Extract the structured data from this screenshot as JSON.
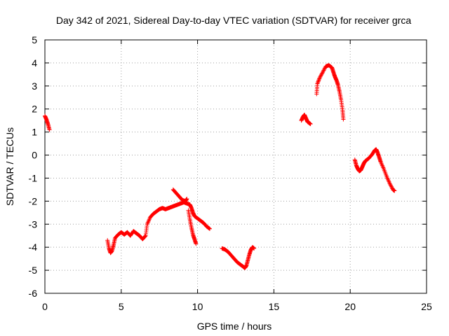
{
  "chart_data": {
    "type": "scatter",
    "title": "Day 342 of 2021, Sidereal Day-to-day VTEC variation (SDTVAR) for receiver grca",
    "xlabel": "GPS time / hours",
    "ylabel": "SDTVAR / TECUs",
    "xlim": [
      0,
      25
    ],
    "ylim": [
      -6,
      5
    ],
    "xticks": [
      0,
      5,
      10,
      15,
      20,
      25
    ],
    "yticks": [
      -6,
      -5,
      -4,
      -3,
      -2,
      -1,
      0,
      1,
      2,
      3,
      4,
      5
    ],
    "grid": true,
    "marker": "+",
    "series_color": "#ff0000",
    "series": [
      {
        "name": "SDTVAR",
        "segments": [
          [
            [
              0.0,
              1.7
            ],
            [
              0.1,
              1.55
            ],
            [
              0.2,
              1.35
            ],
            [
              0.3,
              1.1
            ]
          ],
          [
            [
              4.1,
              -3.7
            ],
            [
              4.2,
              -4.05
            ],
            [
              4.3,
              -4.25
            ],
            [
              4.4,
              -4.15
            ],
            [
              4.5,
              -3.9
            ],
            [
              4.6,
              -3.6
            ],
            [
              4.8,
              -3.45
            ],
            [
              5.0,
              -3.35
            ],
            [
              5.2,
              -3.45
            ],
            [
              5.4,
              -3.35
            ],
            [
              5.6,
              -3.5
            ],
            [
              5.8,
              -3.3
            ],
            [
              6.0,
              -3.4
            ],
            [
              6.2,
              -3.5
            ],
            [
              6.4,
              -3.65
            ],
            [
              6.6,
              -3.5
            ],
            [
              6.7,
              -3.0
            ],
            [
              6.9,
              -2.7
            ],
            [
              7.1,
              -2.55
            ],
            [
              7.3,
              -2.45
            ],
            [
              7.5,
              -2.35
            ],
            [
              7.7,
              -2.3
            ],
            [
              7.9,
              -2.35
            ],
            [
              8.1,
              -2.3
            ],
            [
              8.3,
              -2.25
            ],
            [
              8.5,
              -2.2
            ],
            [
              8.7,
              -2.15
            ],
            [
              8.9,
              -2.1
            ],
            [
              9.1,
              -2.05
            ],
            [
              9.3,
              -2.1
            ],
            [
              9.5,
              -2.15
            ],
            [
              9.6,
              -2.3
            ],
            [
              9.7,
              -2.5
            ],
            [
              9.8,
              -2.65
            ],
            [
              10.0,
              -2.75
            ],
            [
              10.2,
              -2.85
            ],
            [
              10.4,
              -2.95
            ],
            [
              10.6,
              -3.1
            ],
            [
              10.8,
              -3.2
            ]
          ],
          [
            [
              8.4,
              -1.5
            ],
            [
              8.6,
              -1.65
            ],
            [
              8.8,
              -1.8
            ],
            [
              9.0,
              -1.95
            ],
            [
              9.2,
              -2.0
            ],
            [
              9.3,
              -1.9
            ]
          ],
          [
            [
              9.4,
              -2.4
            ],
            [
              9.5,
              -2.8
            ],
            [
              9.6,
              -3.15
            ],
            [
              9.7,
              -3.45
            ],
            [
              9.8,
              -3.65
            ],
            [
              9.9,
              -3.85
            ]
          ],
          [
            [
              11.6,
              -4.05
            ],
            [
              11.8,
              -4.1
            ],
            [
              12.0,
              -4.2
            ],
            [
              12.2,
              -4.35
            ],
            [
              12.4,
              -4.5
            ],
            [
              12.6,
              -4.65
            ],
            [
              12.8,
              -4.75
            ],
            [
              13.0,
              -4.85
            ],
            [
              13.1,
              -4.9
            ],
            [
              13.2,
              -4.8
            ],
            [
              13.3,
              -4.55
            ],
            [
              13.4,
              -4.3
            ],
            [
              13.5,
              -4.1
            ],
            [
              13.6,
              -4.0
            ],
            [
              13.7,
              -4.05
            ]
          ],
          [
            [
              16.8,
              1.5
            ],
            [
              16.9,
              1.65
            ],
            [
              17.0,
              1.75
            ],
            [
              17.1,
              1.6
            ],
            [
              17.2,
              1.45
            ],
            [
              17.3,
              1.4
            ],
            [
              17.4,
              1.35
            ]
          ],
          [
            [
              17.8,
              2.65
            ],
            [
              17.85,
              3.1
            ],
            [
              18.0,
              3.35
            ],
            [
              18.2,
              3.6
            ],
            [
              18.4,
              3.85
            ],
            [
              18.6,
              3.9
            ],
            [
              18.8,
              3.8
            ],
            [
              18.9,
              3.6
            ],
            [
              19.0,
              3.4
            ],
            [
              19.1,
              3.25
            ],
            [
              19.2,
              3.05
            ],
            [
              19.3,
              2.75
            ],
            [
              19.4,
              2.4
            ],
            [
              19.5,
              1.95
            ],
            [
              19.55,
              1.55
            ]
          ],
          [
            [
              20.3,
              -0.2
            ],
            [
              20.4,
              -0.45
            ],
            [
              20.5,
              -0.6
            ],
            [
              20.6,
              -0.7
            ],
            [
              20.7,
              -0.65
            ],
            [
              20.8,
              -0.5
            ],
            [
              20.9,
              -0.35
            ],
            [
              21.0,
              -0.25
            ],
            [
              21.2,
              -0.15
            ],
            [
              21.4,
              0.0
            ],
            [
              21.6,
              0.2
            ],
            [
              21.7,
              0.25
            ],
            [
              21.8,
              0.1
            ],
            [
              21.9,
              -0.1
            ],
            [
              22.0,
              -0.3
            ],
            [
              22.2,
              -0.6
            ],
            [
              22.4,
              -0.95
            ],
            [
              22.6,
              -1.25
            ],
            [
              22.8,
              -1.5
            ],
            [
              22.9,
              -1.55
            ]
          ]
        ]
      }
    ]
  }
}
